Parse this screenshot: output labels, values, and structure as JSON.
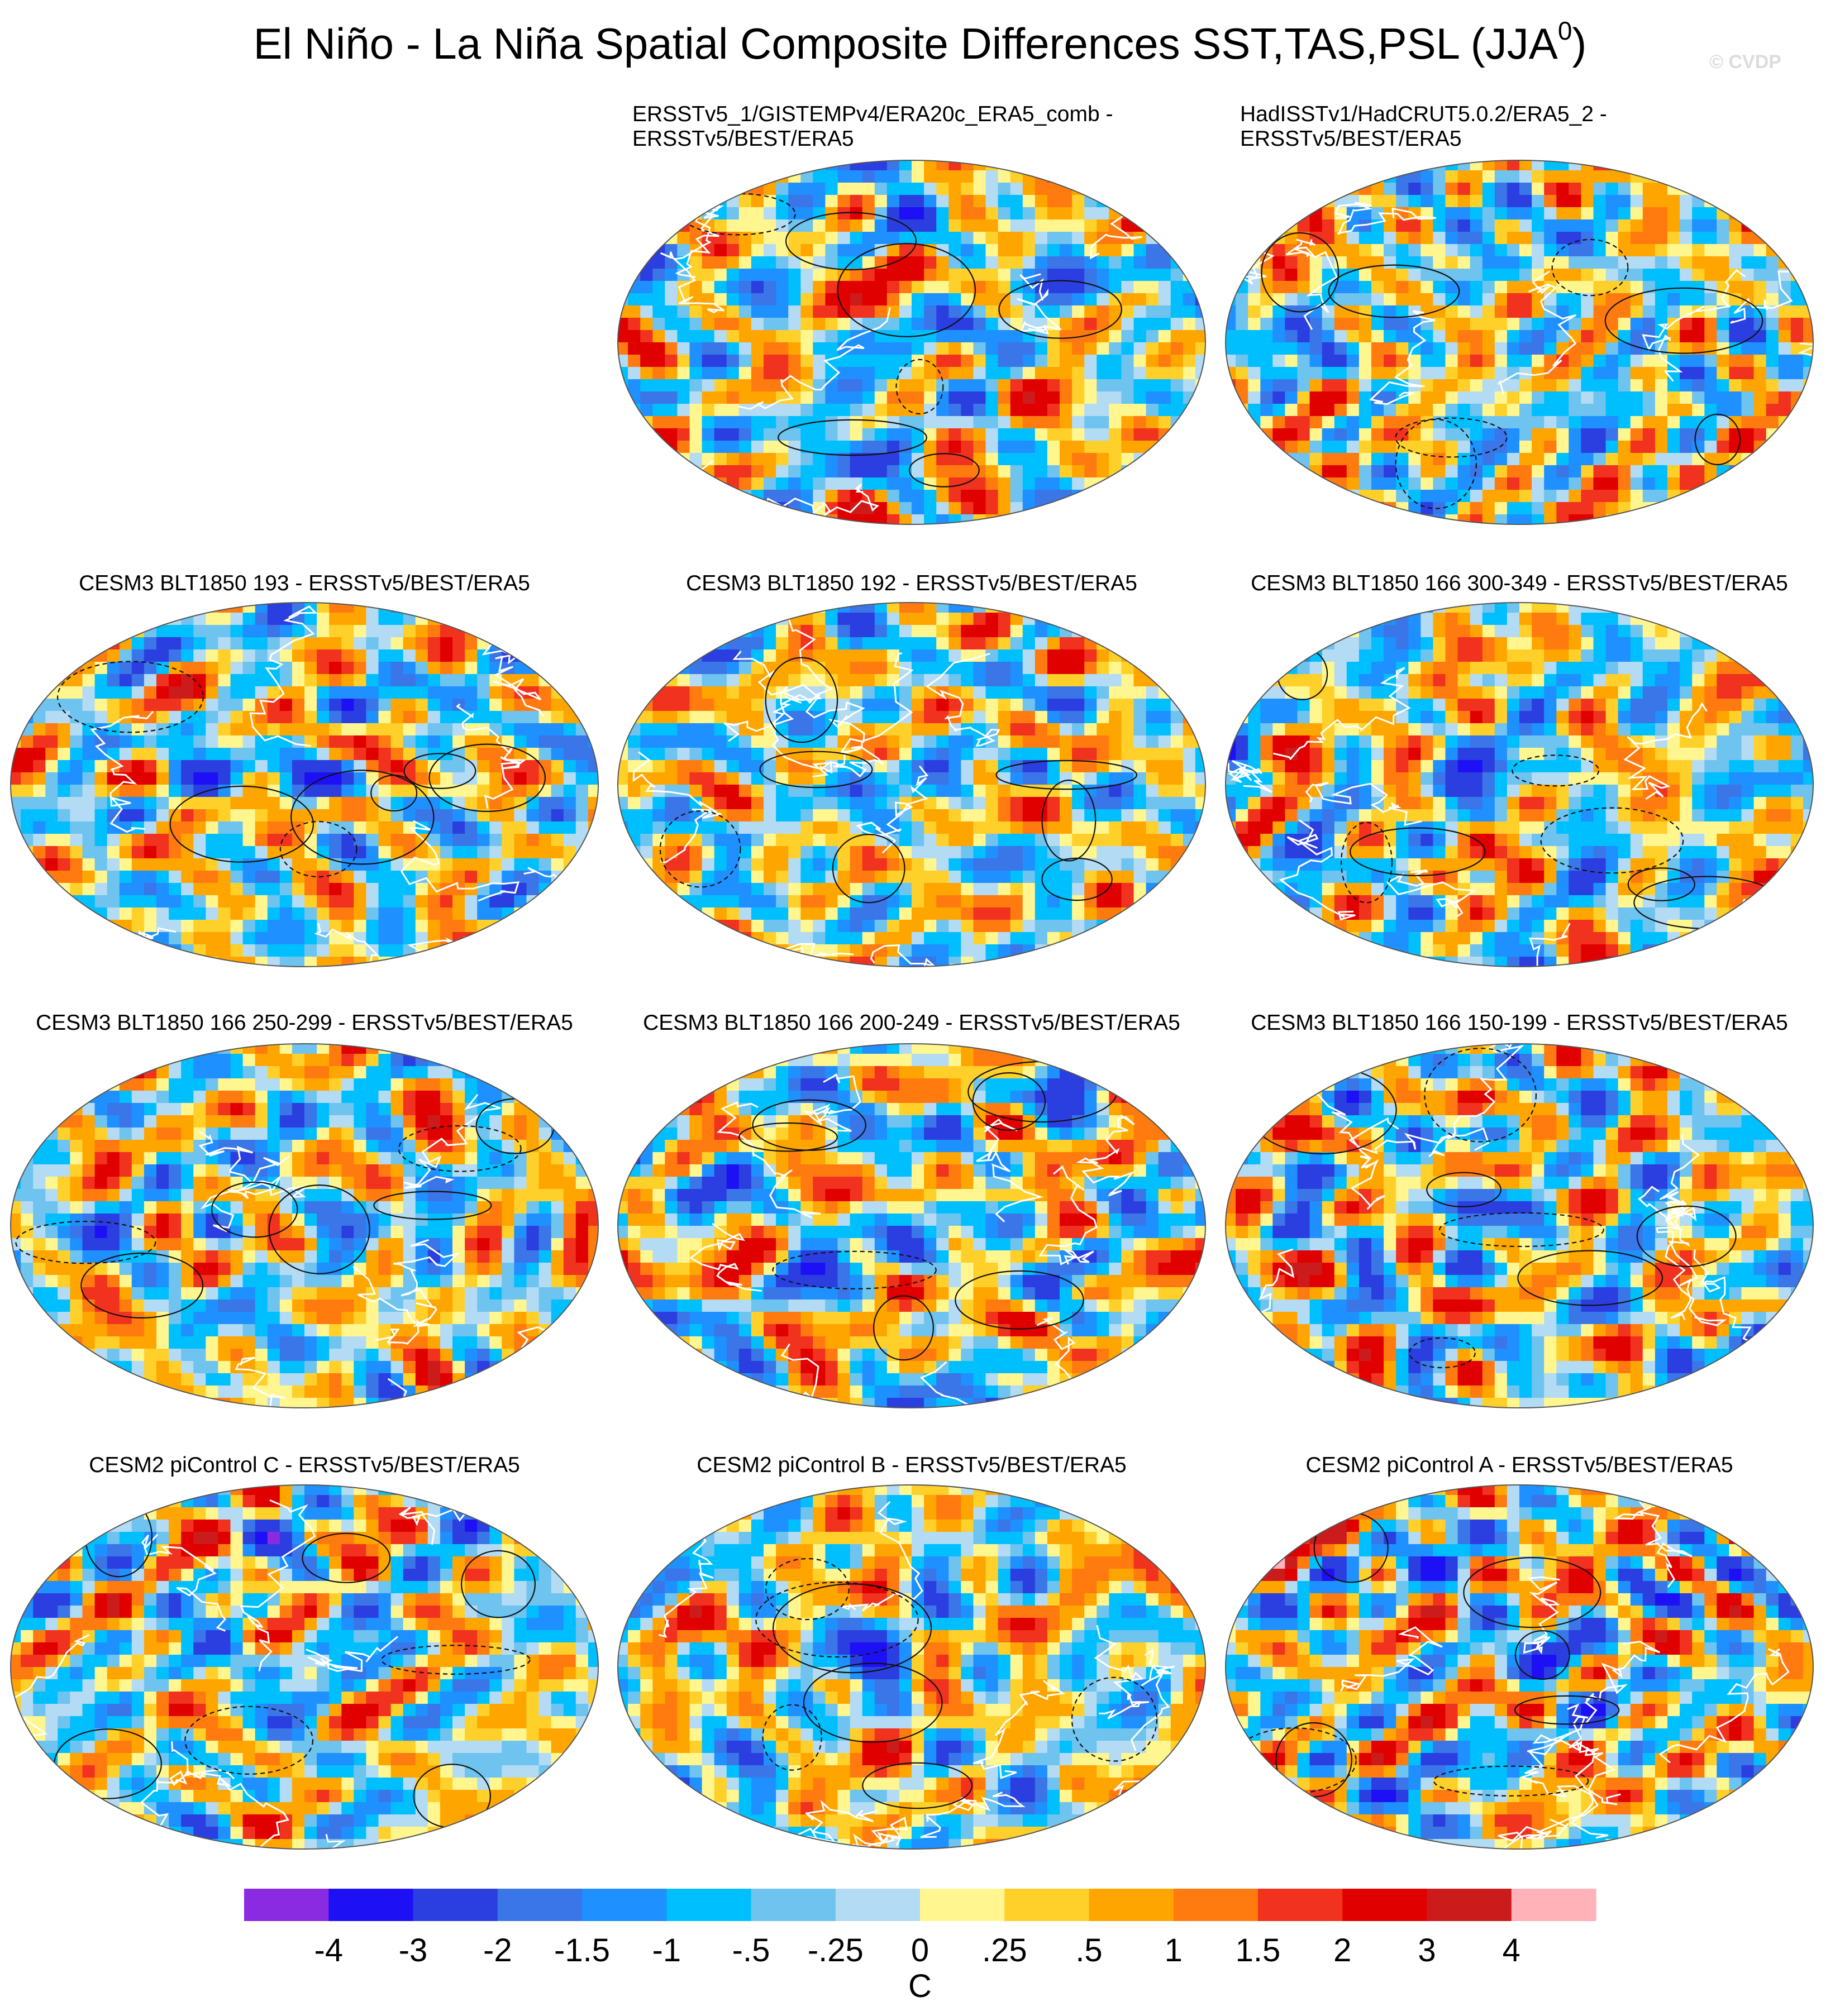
{
  "page": {
    "title_main": "El Niño - La Niña Spatial Composite Differences SST,TAS,PSL (JJA",
    "title_sup": "0",
    "title_end": ")",
    "watermark": "© CVDP"
  },
  "chart_data": {
    "type": "heatmap",
    "projection": "Robinson-like elliptical global maps",
    "panels": [
      {
        "id": "r1c2",
        "row": 1,
        "col": 2,
        "title_lines": [
          "ERSSTv5_1/GISTEMPv4/ERA20c_ERA5_comb -",
          "ERSSTv5/BEST/ERA5"
        ],
        "seed": 11
      },
      {
        "id": "r1c3",
        "row": 1,
        "col": 3,
        "title_lines": [
          "HadISSTv1/HadCRUT5.0.2/ERA5_2 -",
          "ERSSTv5/BEST/ERA5"
        ],
        "seed": 23
      },
      {
        "id": "r2c1",
        "row": 2,
        "col": 1,
        "title_lines": [
          "CESM3 BLT1850 193 - ERSSTv5/BEST/ERA5"
        ],
        "seed": 37
      },
      {
        "id": "r2c2",
        "row": 2,
        "col": 2,
        "title_lines": [
          "CESM3 BLT1850 192 - ERSSTv5/BEST/ERA5"
        ],
        "seed": 41
      },
      {
        "id": "r2c3",
        "row": 2,
        "col": 3,
        "title_lines": [
          "CESM3 BLT1850 166 300-349 - ERSSTv5/BEST/ERA5"
        ],
        "seed": 53
      },
      {
        "id": "r3c1",
        "row": 3,
        "col": 1,
        "title_lines": [
          "CESM3 BLT1850 166 250-299 - ERSSTv5/BEST/ERA5"
        ],
        "seed": 67
      },
      {
        "id": "r3c2",
        "row": 3,
        "col": 2,
        "title_lines": [
          "CESM3 BLT1850 166 200-249 - ERSSTv5/BEST/ERA5"
        ],
        "seed": 71
      },
      {
        "id": "r3c3",
        "row": 3,
        "col": 3,
        "title_lines": [
          "CESM3 BLT1850 166 150-199 - ERSSTv5/BEST/ERA5"
        ],
        "seed": 83
      },
      {
        "id": "r4c1",
        "row": 4,
        "col": 1,
        "title_lines": [
          "CESM2 piControl C - ERSSTv5/BEST/ERA5"
        ],
        "seed": 97
      },
      {
        "id": "r4c2",
        "row": 4,
        "col": 2,
        "title_lines": [
          "CESM2 piControl B - ERSSTv5/BEST/ERA5"
        ],
        "seed": 101
      },
      {
        "id": "r4c3",
        "row": 4,
        "col": 3,
        "title_lines": [
          "CESM2 piControl A - ERSSTv5/BEST/ERA5"
        ],
        "seed": 113
      }
    ],
    "colorbar": {
      "levels": [
        "-4",
        "-3",
        "-2",
        "-1.5",
        "-1",
        "-.5",
        "-.25",
        "0",
        ".25",
        ".5",
        "1",
        "1.5",
        "2",
        "3",
        "4"
      ],
      "colors": [
        "#8a2be2",
        "#1e10f5",
        "#2b3fe0",
        "#3a76e8",
        "#1e90ff",
        "#00bfff",
        "#6ec3ef",
        "#b3dbf3",
        "#fff68f",
        "#ffd02a",
        "#ffa500",
        "#ff7b10",
        "#f0321e",
        "#e00000",
        "#cc1b1b",
        "#ffb3b8"
      ],
      "unit": "C"
    }
  }
}
